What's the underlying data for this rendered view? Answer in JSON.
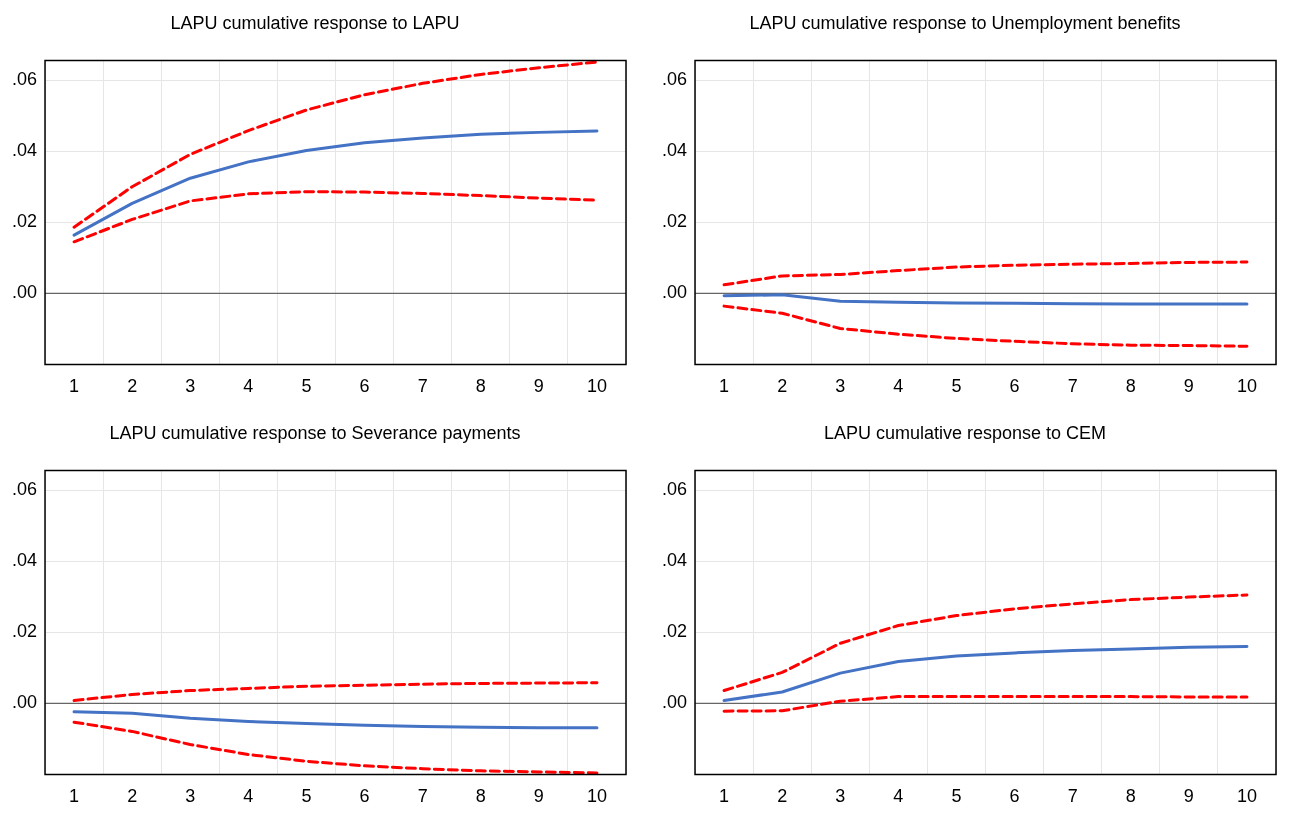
{
  "chart_data": [
    {
      "type": "line",
      "title": "LAPU cumulative response to LAPU",
      "categories": [
        "1",
        "2",
        "3",
        "4",
        "5",
        "6",
        "7",
        "8",
        "9",
        "10"
      ],
      "series": [
        {
          "color": "#4472c4",
          "line_style": "solid",
          "values": [
            0.0164,
            0.0253,
            0.0324,
            0.037,
            0.0402,
            0.0424,
            0.0437,
            0.0448,
            0.0453,
            0.0457
          ]
        },
        {
          "color": "#ff0000",
          "line_style": "dashed",
          "values": [
            0.0186,
            0.03,
            0.0391,
            0.0458,
            0.0516,
            0.0559,
            0.0591,
            0.0616,
            0.0635,
            0.0651
          ]
        },
        {
          "color": "#ff0000",
          "line_style": "dashed",
          "values": [
            0.0145,
            0.0208,
            0.026,
            0.028,
            0.0286,
            0.0285,
            0.0281,
            0.0275,
            0.0268,
            0.0262
          ]
        }
      ],
      "ylim": [
        -0.02,
        0.0655
      ],
      "yticks": [
        {
          "value": 0,
          "label": ".00"
        },
        {
          "value": 0.02,
          "label": ".02"
        },
        {
          "value": 0.04,
          "label": ".04"
        },
        {
          "value": 0.06,
          "label": ".06"
        }
      ],
      "ref_lines": [
        {
          "axis": "y",
          "value": 0,
          "color": "#666666"
        }
      ],
      "grid": true,
      "legend": false,
      "marker": "none"
    },
    {
      "type": "line",
      "title": "LAPU cumulative response to Unemployment benefits",
      "categories": [
        "1",
        "2",
        "3",
        "4",
        "5",
        "6",
        "7",
        "8",
        "9",
        "10"
      ],
      "series": [
        {
          "color": "#4472c4",
          "line_style": "solid",
          "values": [
            -0.0007,
            -0.0004,
            -0.0022,
            -0.0025,
            -0.0027,
            -0.0028,
            -0.0029,
            -0.003,
            -0.003,
            -0.003
          ]
        },
        {
          "color": "#ff0000",
          "line_style": "dashed",
          "values": [
            0.0024,
            0.0049,
            0.0053,
            0.0064,
            0.0074,
            0.0079,
            0.0082,
            0.0084,
            0.0087,
            0.0088
          ]
        },
        {
          "color": "#ff0000",
          "line_style": "dashed",
          "values": [
            -0.0036,
            -0.0056,
            -0.0099,
            -0.0115,
            -0.0127,
            -0.0135,
            -0.0142,
            -0.0146,
            -0.0147,
            -0.0149
          ]
        }
      ],
      "ylim": [
        -0.02,
        0.0655
      ],
      "yticks": [
        {
          "value": 0,
          "label": ".00"
        },
        {
          "value": 0.02,
          "label": ".02"
        },
        {
          "value": 0.04,
          "label": ".04"
        },
        {
          "value": 0.06,
          "label": ".06"
        }
      ],
      "ref_lines": [
        {
          "axis": "y",
          "value": 0,
          "color": "#666666"
        }
      ],
      "grid": true,
      "legend": false,
      "marker": "none"
    },
    {
      "type": "line",
      "title": "LAPU cumulative response to Severance payments",
      "categories": [
        "1",
        "2",
        "3",
        "4",
        "5",
        "6",
        "7",
        "8",
        "9",
        "10"
      ],
      "series": [
        {
          "color": "#4472c4",
          "line_style": "solid",
          "values": [
            -0.0024,
            -0.0028,
            -0.0042,
            -0.0051,
            -0.0057,
            -0.0062,
            -0.0065,
            -0.0067,
            -0.0069,
            -0.0069
          ]
        },
        {
          "color": "#ff0000",
          "line_style": "dashed",
          "values": [
            0.0008,
            0.0025,
            0.0036,
            0.0042,
            0.0048,
            0.0051,
            0.0054,
            0.0056,
            0.0057,
            0.0058
          ]
        },
        {
          "color": "#ff0000",
          "line_style": "dashed",
          "values": [
            -0.0053,
            -0.0079,
            -0.0116,
            -0.0144,
            -0.0163,
            -0.0176,
            -0.0184,
            -0.019,
            -0.0193,
            -0.0196
          ]
        }
      ],
      "ylim": [
        -0.02,
        0.0655
      ],
      "yticks": [
        {
          "value": 0,
          "label": ".00"
        },
        {
          "value": 0.02,
          "label": ".02"
        },
        {
          "value": 0.04,
          "label": ".04"
        },
        {
          "value": 0.06,
          "label": ".06"
        }
      ],
      "ref_lines": [
        {
          "axis": "y",
          "value": 0,
          "color": "#666666"
        }
      ],
      "grid": true,
      "legend": false,
      "marker": "none"
    },
    {
      "type": "line",
      "title": "LAPU cumulative response to CEM",
      "categories": [
        "1",
        "2",
        "3",
        "4",
        "5",
        "6",
        "7",
        "8",
        "9",
        "10"
      ],
      "series": [
        {
          "color": "#4472c4",
          "line_style": "solid",
          "values": [
            0.0008,
            0.0032,
            0.0085,
            0.0118,
            0.0133,
            0.0142,
            0.0149,
            0.0153,
            0.0158,
            0.016
          ]
        },
        {
          "color": "#ff0000",
          "line_style": "dashed",
          "values": [
            0.0036,
            0.0087,
            0.0169,
            0.0219,
            0.0247,
            0.0266,
            0.028,
            0.0292,
            0.0299,
            0.0305
          ]
        },
        {
          "color": "#ff0000",
          "line_style": "dashed",
          "values": [
            -0.0022,
            -0.0021,
            0.0006,
            0.0019,
            0.0019,
            0.0019,
            0.0019,
            0.0019,
            0.0018,
            0.0018
          ]
        }
      ],
      "ylim": [
        -0.02,
        0.0655
      ],
      "yticks": [
        {
          "value": 0,
          "label": ".00"
        },
        {
          "value": 0.02,
          "label": ".02"
        },
        {
          "value": 0.04,
          "label": ".04"
        },
        {
          "value": 0.06,
          "label": ".06"
        }
      ],
      "ref_lines": [
        {
          "axis": "y",
          "value": 0,
          "color": "#666666"
        }
      ],
      "grid": true,
      "legend": false,
      "marker": "none"
    }
  ]
}
